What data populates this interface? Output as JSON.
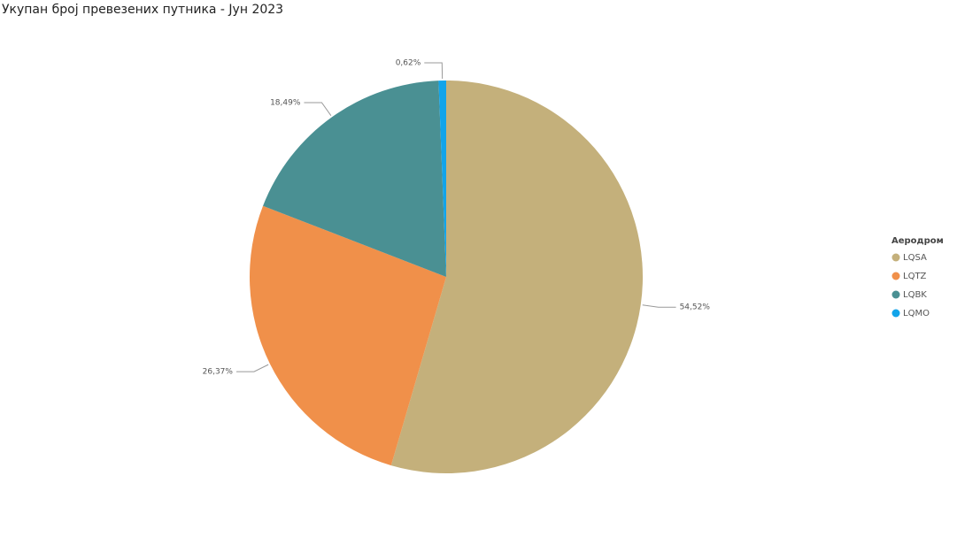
{
  "chart_data": {
    "type": "pie",
    "title": "Укупан број превезених путника - Јун 2023",
    "legend_title": "Аеродром",
    "categories": [
      "LQSA",
      "LQTZ",
      "LQBK",
      "LQMO"
    ],
    "values": [
      54.52,
      26.37,
      18.49,
      0.62
    ],
    "value_labels": [
      "54,52%",
      "26,37%",
      "18,49%",
      "0,62%"
    ],
    "colors": [
      "#c4b07b",
      "#f0904a",
      "#4a9093",
      "#12a4ea"
    ],
    "legend": "right"
  }
}
